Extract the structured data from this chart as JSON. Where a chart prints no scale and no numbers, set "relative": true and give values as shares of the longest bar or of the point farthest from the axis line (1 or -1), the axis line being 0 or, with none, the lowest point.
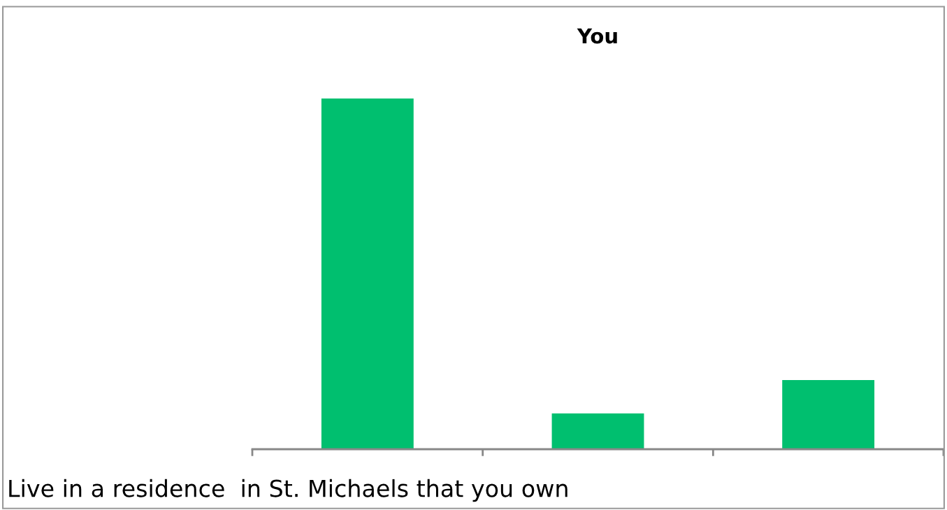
{
  "chart_data": {
    "type": "bar",
    "title": "You",
    "relative": true,
    "categories": [
      null,
      null,
      null
    ],
    "values": [
      1,
      0.102,
      0.197
    ],
    "color": "#00bf6f",
    "annotations": [
      "Live in a residence  in St. Michaels that you own"
    ],
    "grid": false
  }
}
